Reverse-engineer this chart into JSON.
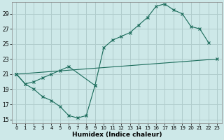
{
  "xlabel": "Humidex (Indice chaleur)",
  "bg_color": "#cde8e8",
  "grid_color": "#b0cccc",
  "line_color": "#1a6b5a",
  "xlim": [
    -0.5,
    23.5
  ],
  "ylim": [
    14.5,
    30.5
  ],
  "xticks": [
    0,
    1,
    2,
    3,
    4,
    5,
    6,
    7,
    8,
    9,
    10,
    11,
    12,
    13,
    14,
    15,
    16,
    17,
    18,
    19,
    20,
    21,
    22,
    23
  ],
  "yticks": [
    15,
    17,
    19,
    21,
    23,
    25,
    27,
    29
  ],
  "line1_x": [
    0,
    1,
    2,
    3,
    4,
    5,
    6,
    7,
    8,
    9
  ],
  "line1_y": [
    21,
    19.7,
    19.0,
    18.0,
    17.5,
    16.7,
    15.5,
    15.2,
    15.5,
    19.5
  ],
  "line2_x": [
    0,
    1,
    2,
    3,
    4,
    5,
    6,
    9,
    10,
    11,
    12,
    13,
    14,
    15,
    16,
    17,
    18,
    19,
    20,
    21,
    22
  ],
  "line2_y": [
    21,
    19.7,
    20.0,
    20.5,
    21.0,
    21.5,
    22.0,
    19.5,
    24.5,
    25.5,
    26.0,
    26.5,
    27.5,
    28.5,
    30.0,
    30.3,
    29.5,
    29.0,
    27.3,
    27.0,
    25.2
  ],
  "line3_x": [
    0,
    23
  ],
  "line3_y": [
    21,
    23
  ]
}
